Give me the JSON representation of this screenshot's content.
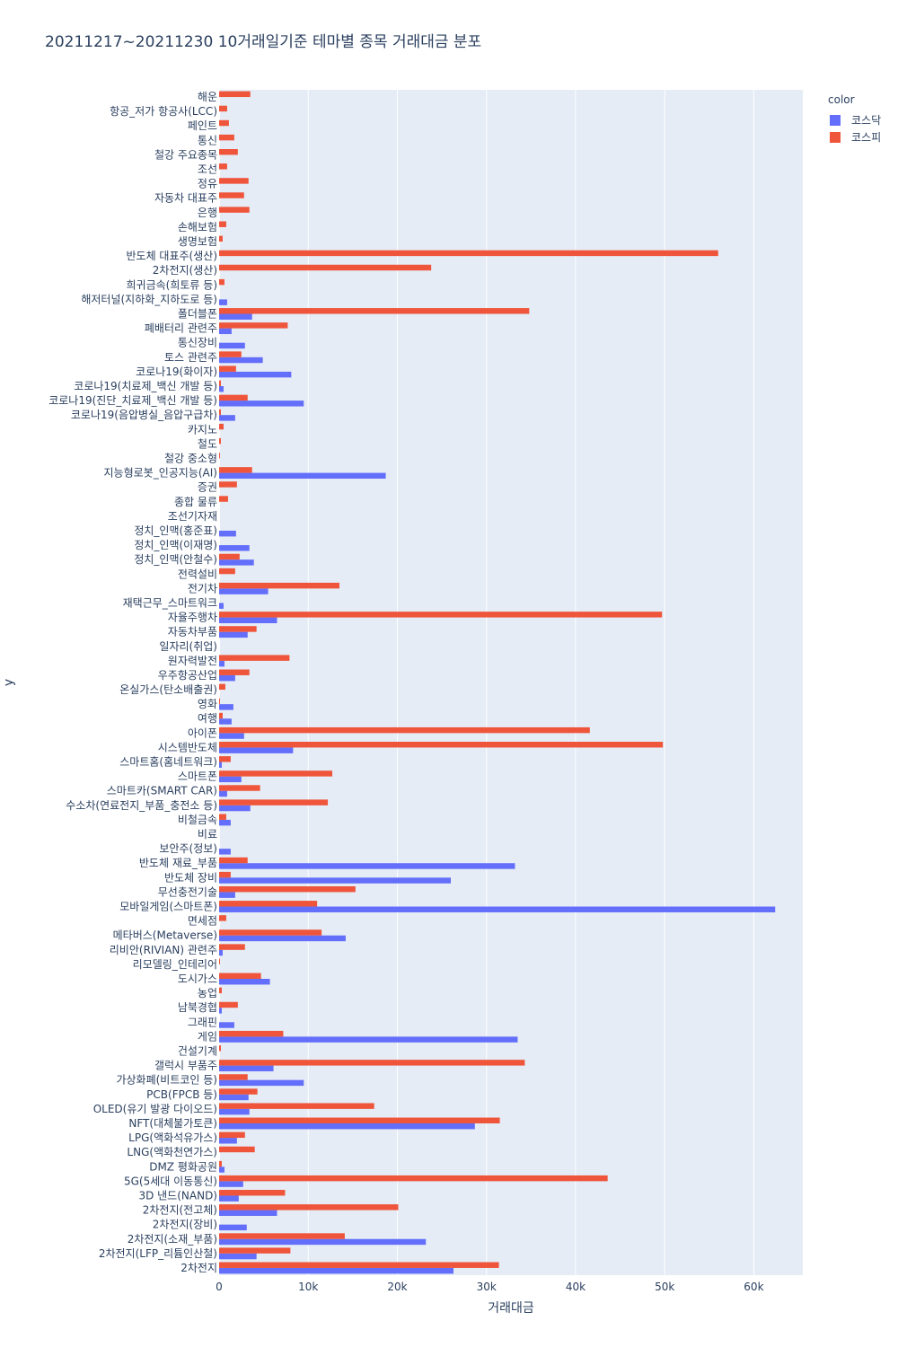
{
  "chart_data": {
    "type": "bar",
    "orientation": "horizontal",
    "barmode": "group",
    "title": "20211217~20211230 10거래일기준 테마별 종목 거래대금 분포",
    "xlabel": "거래대금",
    "ylabel": "y",
    "xlim": [
      0,
      65500
    ],
    "x_ticks": [
      0,
      10000,
      20000,
      30000,
      40000,
      50000,
      60000
    ],
    "x_tick_labels": [
      "0",
      "10k",
      "20k",
      "30k",
      "40k",
      "50k",
      "60k"
    ],
    "grid": true,
    "legend_title": "color",
    "legend_position": "top-right",
    "categories": [
      "해운",
      "항공_저가 항공사(LCC)",
      "페인트",
      "통신",
      "철강 주요종목",
      "조선",
      "정유",
      "자동차 대표주",
      "은행",
      "손해보험",
      "생명보험",
      "반도체 대표주(생산)",
      "2차전지(생산)",
      "희귀금속(희토류 등)",
      "해저터널(지하화_지하도로 등)",
      "폴더블폰",
      "폐배터리 관련주",
      "통신장비",
      "토스 관련주",
      "코로나19(화이자)",
      "코로나19(치료제_백신 개발 등)",
      "코로나19(진단_치료제_백신 개발 등)",
      "코로나19(음압병실_음압구급차)",
      "카지노",
      "철도",
      "철강 중소형",
      "지능형로봇_인공지능(AI)",
      "증권",
      "종합 물류",
      "조선기자재",
      "정치_인맥(홍준표)",
      "정치_인맥(이재명)",
      "정치_인맥(안철수)",
      "전력설비",
      "전기차",
      "재택근무_스마트워크",
      "자율주행차",
      "자동차부품",
      "일자리(취업)",
      "원자력발전",
      "우주항공산업",
      "온실가스(탄소배출권)",
      "영화",
      "여행",
      "아이폰",
      "시스템반도체",
      "스마트홈(홈네트워크)",
      "스마트폰",
      "스마트카(SMART CAR)",
      "수소차(연료전지_부품_충전소 등)",
      "비철금속",
      "비료",
      "보안주(정보)",
      "반도체 재료_부품",
      "반도체 장비",
      "무선충전기술",
      "모바일게임(스마트폰)",
      "면세점",
      "메타버스(Metaverse)",
      "리비안(RIVIAN) 관련주",
      "리모델링_인테리어",
      "도시가스",
      "농업",
      "남북경협",
      "그래핀",
      "게임",
      "건설기계",
      "갤럭시 부품주",
      "가상화폐(비트코인 등)",
      "PCB(FPCB 등)",
      "OLED(유기 발광 다이오드)",
      "NFT(대체불가토큰)",
      "LPG(액화석유가스)",
      "LNG(액화천연가스)",
      "DMZ 평화공원",
      "5G(5세대 이동통신)",
      "3D 낸드(NAND)",
      "2차전지(전고체)",
      "2차전지(장비)",
      "2차전지(소재_부품)",
      "2차전지(LFP_리튬인산철)",
      "2차전지"
    ],
    "series": [
      {
        "name": "코스닥",
        "color": "#636efa",
        "values": [
          0,
          0,
          0,
          0,
          0,
          0,
          0,
          0,
          0,
          0,
          0,
          0,
          0,
          0,
          900,
          3700,
          1400,
          2900,
          4900,
          8100,
          500,
          9500,
          1800,
          0,
          0,
          0,
          18700,
          0,
          0,
          0,
          1900,
          3400,
          3900,
          0,
          5500,
          500,
          6500,
          3200,
          0,
          600,
          1800,
          0,
          1600,
          1400,
          2800,
          8300,
          300,
          2500,
          900,
          3500,
          1300,
          0,
          1300,
          33200,
          26000,
          1800,
          62400,
          0,
          14200,
          400,
          0,
          5700,
          0,
          300,
          1700,
          33500,
          0,
          6100,
          9500,
          3300,
          3400,
          28700,
          2000,
          0,
          600,
          2700,
          2200,
          6500,
          3100,
          23200,
          4200,
          26300
        ]
      },
      {
        "name": "코스피",
        "color": "#ef553b",
        "values": [
          3500,
          900,
          1100,
          1700,
          2100,
          900,
          3300,
          2800,
          3400,
          800,
          400,
          56000,
          23800,
          600,
          0,
          34800,
          7700,
          0,
          2500,
          1900,
          200,
          3200,
          200,
          500,
          200,
          100,
          3700,
          2000,
          1000,
          0,
          0,
          0,
          2300,
          1800,
          13500,
          0,
          49700,
          4200,
          0,
          7900,
          3400,
          700,
          100,
          400,
          41600,
          49800,
          1300,
          12700,
          4600,
          12200,
          800,
          0,
          0,
          3200,
          1300,
          15300,
          11000,
          800,
          11500,
          2900,
          100,
          4700,
          300,
          2100,
          0,
          7200,
          200,
          34300,
          3200,
          4300,
          17400,
          31500,
          2900,
          4000,
          300,
          43600,
          7400,
          20100,
          0,
          14100,
          8000,
          31400
        ]
      }
    ]
  }
}
